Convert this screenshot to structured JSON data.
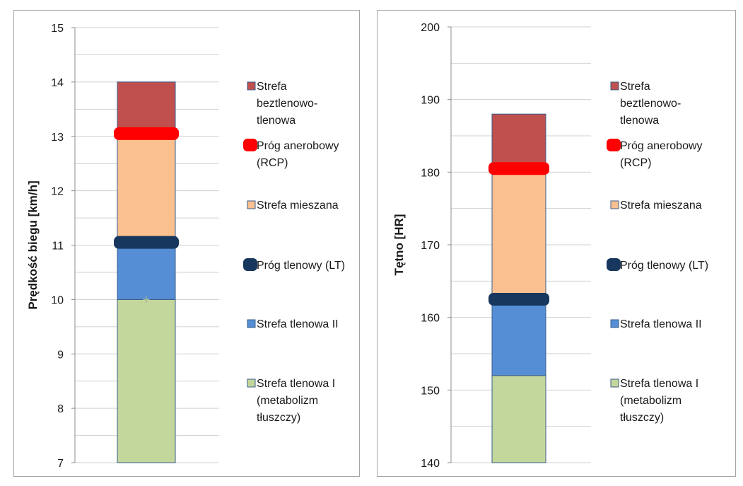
{
  "chart_data": [
    {
      "type": "bar",
      "stacked": true,
      "ylabel": "Prędkość biegu [km/h]",
      "ylim": [
        7,
        15
      ],
      "yticks": [
        7,
        8,
        9,
        10,
        11,
        12,
        13,
        14,
        15
      ],
      "minor_step": 0.5,
      "segments": [
        {
          "name": "Strefa tlenowa I (metabolizm tłuszczy)",
          "from": 7,
          "to": 10,
          "color": "#c3d69b"
        },
        {
          "name": "Strefa tlenowa II",
          "from": 10,
          "to": 11.05,
          "color": "#558ed5"
        },
        {
          "name": "Strefa mieszana",
          "from": 11.05,
          "to": 13.05,
          "color": "#fac090"
        },
        {
          "name": "Strefa beztlenowo-tlenowa",
          "from": 13.05,
          "to": 14,
          "color": "#c0504d"
        }
      ],
      "thresholds": [
        {
          "name": "Próg tlenowy (LT)",
          "value": 11.05,
          "color": "#17375e"
        },
        {
          "name": "Próg anerobowy (RCP)",
          "value": 13.05,
          "color": "#ff0000"
        }
      ],
      "marker": {
        "symbol": "+",
        "value": 10
      }
    },
    {
      "type": "bar",
      "stacked": true,
      "ylabel": "Tętno [HR]",
      "ylim": [
        140,
        200
      ],
      "yticks": [
        140,
        150,
        160,
        170,
        180,
        190,
        200
      ],
      "minor_step": 5,
      "segments": [
        {
          "name": "Strefa tlenowa I (metabolizm tłuszczy)",
          "from": 140,
          "to": 152,
          "color": "#c3d69b"
        },
        {
          "name": "Strefa tlenowa II",
          "from": 152,
          "to": 162.5,
          "color": "#558ed5"
        },
        {
          "name": "Strefa mieszana",
          "from": 162.5,
          "to": 180.5,
          "color": "#fac090"
        },
        {
          "name": "Strefa beztlenowo-tlenowa",
          "from": 180.5,
          "to": 188,
          "color": "#c0504d"
        }
      ],
      "thresholds": [
        {
          "name": "Próg tlenowy (LT)",
          "value": 162.5,
          "color": "#17375e"
        },
        {
          "name": "Próg anerobowy (RCP)",
          "value": 180.5,
          "color": "#ff0000"
        }
      ]
    }
  ],
  "legend": [
    {
      "lines": [
        "Strefa",
        "beztlenowo-",
        "tlenowa"
      ],
      "color": "#c0504d",
      "kind": "box"
    },
    {
      "lines": [
        "Próg anerobowy",
        "(RCP)"
      ],
      "color": "#ff0000",
      "kind": "threshold"
    },
    {
      "lines": [
        "Strefa mieszana"
      ],
      "color": "#fac090",
      "kind": "box"
    },
    {
      "lines": [
        "Próg tlenowy (LT)"
      ],
      "color": "#17375e",
      "kind": "threshold"
    },
    {
      "lines": [
        "Strefa tlenowa II"
      ],
      "color": "#558ed5",
      "kind": "box"
    },
    {
      "lines": [
        "Strefa tlenowa I",
        "(metabolizm",
        "tłuszczy)"
      ],
      "color": "#c3d69b",
      "kind": "box"
    }
  ]
}
